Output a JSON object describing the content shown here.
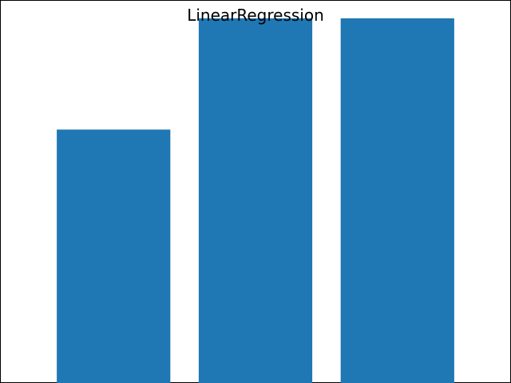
{
  "chart_data": {
    "type": "bar",
    "title": "LinearRegression",
    "categories": [
      "",
      "",
      ""
    ],
    "values": [
      0.695,
      1.0,
      1.0
    ],
    "ylim": [
      0,
      1.0
    ],
    "xlabel": "",
    "ylabel": "",
    "grid": false,
    "colors": {
      "bar": "#1f77b4",
      "frame": "#000000",
      "background": "#ffffff"
    }
  }
}
